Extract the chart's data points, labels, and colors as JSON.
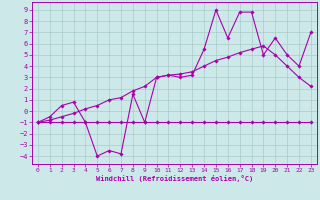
{
  "bg_color": "#cce8e8",
  "line_color": "#aa00aa",
  "grid_color": "#aacccc",
  "xlabel": "Windchill (Refroidissement éolien,°C)",
  "x_ticks": [
    0,
    1,
    2,
    3,
    4,
    5,
    6,
    7,
    8,
    9,
    10,
    11,
    12,
    13,
    14,
    15,
    16,
    17,
    18,
    19,
    20,
    21,
    22,
    23
  ],
  "y_ticks": [
    -4,
    -3,
    -2,
    -1,
    0,
    1,
    2,
    3,
    4,
    5,
    6,
    7,
    8,
    9
  ],
  "ylim": [
    -4.7,
    9.7
  ],
  "xlim": [
    -0.5,
    23.5
  ],
  "flat_x": [
    0,
    1,
    2,
    3,
    4,
    5,
    6,
    7,
    8,
    9,
    10,
    11,
    12,
    13,
    14,
    15,
    16,
    17,
    18,
    19,
    20,
    21,
    22,
    23
  ],
  "flat_y": [
    -1,
    -1,
    -1,
    -1,
    -1,
    -1,
    -1,
    -1,
    -1,
    -1,
    -1,
    -1,
    -1,
    -1,
    -1,
    -1,
    -1,
    -1,
    -1,
    -1,
    -1,
    -1,
    -1,
    -1
  ],
  "diag_x": [
    0,
    1,
    2,
    3,
    4,
    5,
    6,
    7,
    8,
    9,
    10,
    11,
    12,
    13,
    14,
    15,
    16,
    17,
    18,
    19,
    20,
    21,
    22,
    23
  ],
  "diag_y": [
    -1,
    -0.8,
    -0.5,
    -0.2,
    0.2,
    0.5,
    1.0,
    1.2,
    1.8,
    2.2,
    3.0,
    3.2,
    3.3,
    3.5,
    4.0,
    4.5,
    4.8,
    5.2,
    5.5,
    5.8,
    5.0,
    4.0,
    3.0,
    2.2
  ],
  "jag_x": [
    0,
    1,
    2,
    3,
    4,
    5,
    6,
    7,
    8,
    9,
    10,
    11,
    12,
    13,
    14,
    15,
    16,
    17,
    18,
    19,
    20,
    21,
    22,
    23
  ],
  "jag_y": [
    -1,
    -0.5,
    0.5,
    0.8,
    -1.0,
    -4.0,
    -3.5,
    -3.8,
    1.5,
    -1.0,
    3.0,
    3.2,
    3.0,
    3.2,
    5.5,
    9.0,
    6.5,
    8.8,
    8.8,
    5.0,
    6.5,
    5.0,
    4.0,
    7.0
  ]
}
